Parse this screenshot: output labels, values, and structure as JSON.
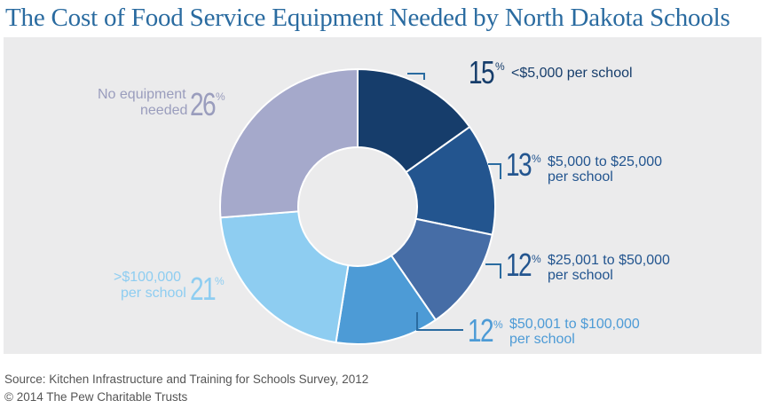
{
  "title": "The Cost of Food Service Equipment Needed by North Dakota Schools",
  "source": "Source: Kitchen Infrastructure and Training for Schools Survey, 2012",
  "copyright": "© 2014 The Pew Charitable Trusts",
  "chart_data": {
    "type": "pie",
    "variant": "donut",
    "title": "The Cost of Food Service Equipment Needed by North Dakota Schools",
    "slices": [
      {
        "label": "<$5,000 per school",
        "value": 15,
        "color": "#163d6b"
      },
      {
        "label": "$5,000 to $25,000 per school",
        "value": 13,
        "color": "#23558f"
      },
      {
        "label": "$25,001 to $50,000 per school",
        "value": 12,
        "color": "#466da6"
      },
      {
        "label": "$50,001 to $100,000 per school",
        "value": 12,
        "color": "#4d9bd6"
      },
      {
        "label": ">$100,000 per school",
        "value": 21,
        "color": "#8ecdf1"
      },
      {
        "label": "No equipment needed",
        "value": 26,
        "color": "#a5a9cb"
      }
    ]
  },
  "labels": [
    {
      "pct": "15",
      "sign": "%",
      "line1": "<$5,000 per school",
      "line2": "",
      "color": "#163d6b"
    },
    {
      "pct": "13",
      "sign": "%",
      "line1": "$5,000 to $25,000",
      "line2": "per school",
      "color": "#23558f"
    },
    {
      "pct": "12",
      "sign": "%",
      "line1": "$25,001 to $50,000",
      "line2": "per school",
      "color": "#23558f"
    },
    {
      "pct": "12",
      "sign": "%",
      "line1": "$50,001 to $100,000",
      "line2": "per school",
      "color": "#4d9bd6"
    },
    {
      "pct": "21",
      "sign": "%",
      "line1": ">$100,000",
      "line2": "per school",
      "color": "#8ecdf1"
    },
    {
      "pct": "26",
      "sign": "%",
      "line1": "No equipment",
      "line2": "needed",
      "color": "#9a9dbd"
    }
  ],
  "colors": {
    "title": "#2a6ba0",
    "panel": "#ebebec",
    "connector": "#2a6ba0"
  }
}
